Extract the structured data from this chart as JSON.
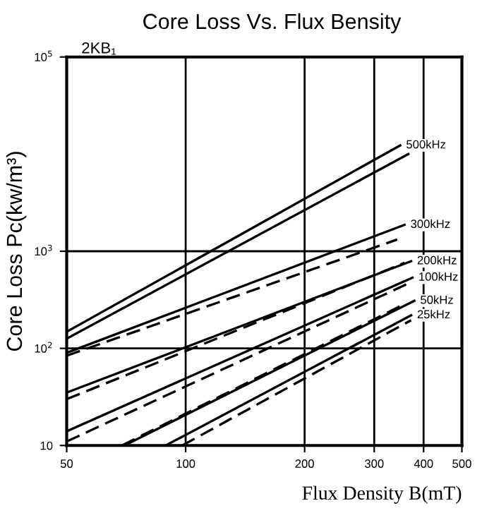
{
  "chart_data": {
    "type": "line",
    "title": "Core Loss Vs. Flux Bensity",
    "subtitle": "2KB₁",
    "xlabel": "Flux Density B(mT)",
    "ylabel": "Core Loss Pc(kw/m³)",
    "log": "xy",
    "xlim": [
      50,
      500
    ],
    "ylim": [
      10,
      100000
    ],
    "xticks": [
      50,
      100,
      200,
      300,
      400,
      500
    ],
    "yticks": [
      10,
      {
        "value": 100,
        "label": "10$^{2}$"
      },
      {
        "value": 1000,
        "label": "10$^{3}$"
      },
      {
        "value": 100000,
        "label": "10$^{5}$"
      }
    ],
    "grid": true,
    "legend": false,
    "marker": "none",
    "series": [
      {
        "name": "500kHz",
        "color": "#000000",
        "line_style": "solid",
        "x": [
          50,
          349
        ],
        "values": [
          148,
          12300
        ]
      },
      {
        "color": "#000000",
        "line_style": "solid",
        "x": [
          50,
          366
        ],
        "values": [
          126,
          10000
        ]
      },
      {
        "name": "300kHz",
        "color": "#000000",
        "line_style": "solid",
        "x": [
          50,
          358
        ],
        "values": [
          90,
          1870
        ]
      },
      {
        "color": "#000000",
        "line_style": "dashed",
        "x": [
          50,
          343
        ],
        "values": [
          84,
          1320
        ]
      },
      {
        "name": "200kHz",
        "color": "#000000",
        "line_style": "solid",
        "x": [
          50,
          372
        ],
        "values": [
          35,
          790
        ]
      },
      {
        "color": "#000000",
        "line_style": "dashed",
        "x": [
          50,
          358
        ],
        "values": [
          30,
          760
        ]
      },
      {
        "name": "100kHz",
        "color": "#000000",
        "line_style": "solid",
        "x": [
          50,
          375
        ],
        "values": [
          14,
          535
        ]
      },
      {
        "color": "#000000",
        "line_style": "dashed",
        "x": [
          50,
          372
        ],
        "values": [
          11,
          480
        ]
      },
      {
        "name": "50kHz",
        "color": "#000000",
        "line_style": "solid",
        "x": [
          70,
          379
        ],
        "values": [
          10,
          309
        ]
      },
      {
        "color": "#000000",
        "line_style": "dashed",
        "x": [
          69,
          358
        ],
        "values": [
          10,
          286
        ]
      },
      {
        "name": "25kHz",
        "color": "#000000",
        "line_style": "solid",
        "x": [
          89,
          372
        ],
        "values": [
          10,
          219
        ]
      },
      {
        "color": "#000000",
        "line_style": "dashed",
        "x": [
          98,
          372
        ],
        "values": [
          10,
          195
        ]
      }
    ]
  }
}
